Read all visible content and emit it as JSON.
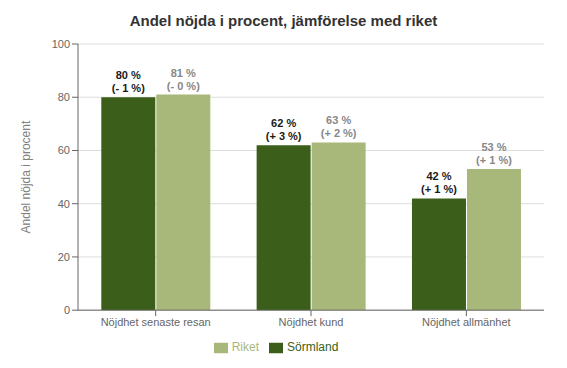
{
  "chart_data": {
    "type": "bar",
    "title": "Andel nöjda i procent, jämförelse med riket",
    "ylabel": "Andel nöjda i procent",
    "categories": [
      "Nöjdhet senaste resan",
      "Nöjdhet kund",
      "Nöjdhet allmänhet"
    ],
    "series": [
      {
        "name": "Sörmland",
        "color": "#3B5E1A",
        "values": [
          80,
          62,
          42
        ],
        "value_labels": [
          "80 %\n(- 1 %)",
          "62 %\n(+ 3 %)",
          "42 %\n(+ 1 %)"
        ]
      },
      {
        "name": "Riket",
        "color": "#A8B87A",
        "values": [
          81,
          63,
          53
        ],
        "value_labels": [
          "81 %\n(- 0 %)",
          "63 %\n(+ 2 %)",
          "53 %\n(+ 1 %)"
        ]
      }
    ],
    "ylim": [
      0,
      100
    ],
    "yticks": [
      0,
      20,
      40,
      60,
      80,
      100
    ],
    "grid": true,
    "legend": "bottom",
    "data_labels": true
  }
}
